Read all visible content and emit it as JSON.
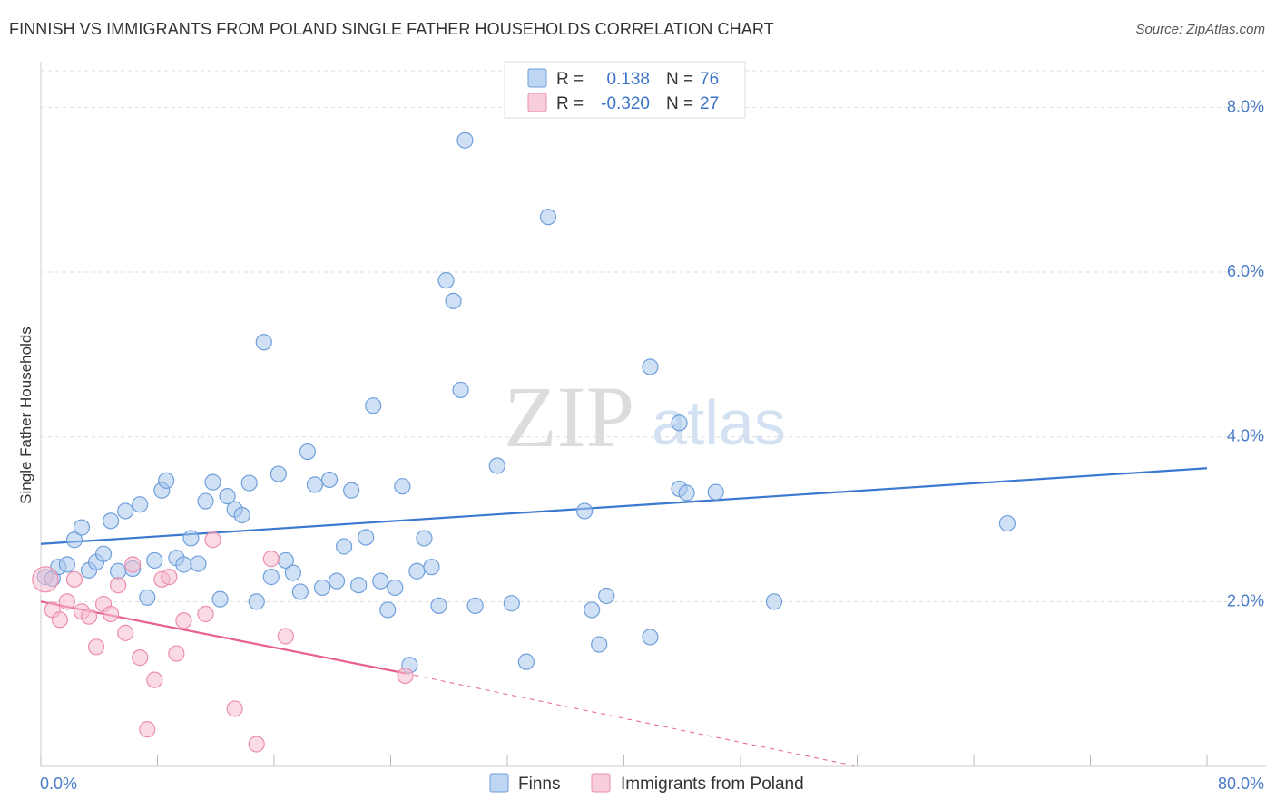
{
  "title": "FINNISH VS IMMIGRANTS FROM POLAND SINGLE FATHER HOUSEHOLDS CORRELATION CHART",
  "source": "Source: ZipAtlas.com",
  "watermark": {
    "zip": "ZIP",
    "atlas": "atlas"
  },
  "colors": {
    "finns_fill": "#a9c8ef",
    "finns_stroke": "#6f9fdb",
    "finns_line": "#3b78cf",
    "poland_fill": "#f6bccd",
    "poland_stroke": "#ec8eab",
    "poland_line": "#e8608f",
    "tick_text": "#4a7cc7",
    "grid": "#dddddd"
  },
  "legend": {
    "rows": [
      {
        "r_label": "R =",
        "r_value": "0.138",
        "n_label": "N =",
        "n_value": "76"
      },
      {
        "r_label": "R =",
        "r_value": "-0.320",
        "n_label": "N =",
        "n_value": "27"
      }
    ]
  },
  "chart_data": {
    "type": "scatter",
    "title": "FINNISH VS IMMIGRANTS FROM POLAND SINGLE FATHER HOUSEHOLDS CORRELATION CHART",
    "xlabel": "",
    "ylabel": "Single Father Households",
    "xlim": [
      0,
      80
    ],
    "ylim": [
      0,
      8.5
    ],
    "x_tick_labels": [
      "0.0%",
      "80.0%"
    ],
    "y_ticks": [
      2,
      4,
      6,
      8
    ],
    "y_tick_labels": [
      "2.0%",
      "4.0%",
      "6.0%",
      "8.0%"
    ],
    "grid": true,
    "series": [
      {
        "name": "Finns",
        "r": 0.138,
        "n": 76,
        "trend": {
          "x": [
            0,
            80
          ],
          "y": [
            2.7,
            3.62
          ]
        },
        "points": [
          [
            0.3,
            2.3
          ],
          [
            0.8,
            2.28
          ],
          [
            1.2,
            2.42
          ],
          [
            1.8,
            2.45
          ],
          [
            2.3,
            2.75
          ],
          [
            2.8,
            2.9
          ],
          [
            3.3,
            2.38
          ],
          [
            3.8,
            2.48
          ],
          [
            4.3,
            2.58
          ],
          [
            4.8,
            2.98
          ],
          [
            5.3,
            2.37
          ],
          [
            5.8,
            3.1
          ],
          [
            6.3,
            2.4
          ],
          [
            6.8,
            3.18
          ],
          [
            7.3,
            2.05
          ],
          [
            7.8,
            2.5
          ],
          [
            8.3,
            3.35
          ],
          [
            8.6,
            3.47
          ],
          [
            9.3,
            2.53
          ],
          [
            9.8,
            2.45
          ],
          [
            10.3,
            2.77
          ],
          [
            10.8,
            2.46
          ],
          [
            11.3,
            3.22
          ],
          [
            11.8,
            3.45
          ],
          [
            12.3,
            2.03
          ],
          [
            12.8,
            3.28
          ],
          [
            13.3,
            3.12
          ],
          [
            13.8,
            3.05
          ],
          [
            14.3,
            3.44
          ],
          [
            14.8,
            2.0
          ],
          [
            15.3,
            5.15
          ],
          [
            15.8,
            2.3
          ],
          [
            16.3,
            3.55
          ],
          [
            16.8,
            2.5
          ],
          [
            17.3,
            2.35
          ],
          [
            17.8,
            2.12
          ],
          [
            18.3,
            3.82
          ],
          [
            18.8,
            3.42
          ],
          [
            19.3,
            2.17
          ],
          [
            19.8,
            3.48
          ],
          [
            20.3,
            2.25
          ],
          [
            20.8,
            2.67
          ],
          [
            21.3,
            3.35
          ],
          [
            21.8,
            2.2
          ],
          [
            22.3,
            2.78
          ],
          [
            22.8,
            4.38
          ],
          [
            23.3,
            2.25
          ],
          [
            23.8,
            1.9
          ],
          [
            24.3,
            2.17
          ],
          [
            24.8,
            3.4
          ],
          [
            25.3,
            1.23
          ],
          [
            25.8,
            2.37
          ],
          [
            26.3,
            2.77
          ],
          [
            26.8,
            2.42
          ],
          [
            27.3,
            1.95
          ],
          [
            27.8,
            5.9
          ],
          [
            28.3,
            5.65
          ],
          [
            28.8,
            4.57
          ],
          [
            29.1,
            7.6
          ],
          [
            29.8,
            1.95
          ],
          [
            31.3,
            3.65
          ],
          [
            32.3,
            1.98
          ],
          [
            33.3,
            1.27
          ],
          [
            34.8,
            6.67
          ],
          [
            37.3,
            3.1
          ],
          [
            37.8,
            1.9
          ],
          [
            38.3,
            1.48
          ],
          [
            38.8,
            2.07
          ],
          [
            41.8,
            1.57
          ],
          [
            41.8,
            4.85
          ],
          [
            43.8,
            4.17
          ],
          [
            43.8,
            3.37
          ],
          [
            44.3,
            3.32
          ],
          [
            46.3,
            3.33
          ],
          [
            50.3,
            2.0
          ],
          [
            66.3,
            2.95
          ]
        ]
      },
      {
        "name": "Immigrants from Poland",
        "r": -0.32,
        "n": 27,
        "trend": {
          "x": [
            0,
            25
          ],
          "y": [
            2.0,
            1.13
          ]
        },
        "trend_dashed": {
          "x": [
            25,
            56
          ],
          "y": [
            1.13,
            0.0
          ]
        },
        "points": [
          [
            0.8,
            1.9
          ],
          [
            1.3,
            1.78
          ],
          [
            1.8,
            2.0
          ],
          [
            2.3,
            2.27
          ],
          [
            2.8,
            1.88
          ],
          [
            3.3,
            1.82
          ],
          [
            3.8,
            1.45
          ],
          [
            4.3,
            1.97
          ],
          [
            4.8,
            1.85
          ],
          [
            5.3,
            2.2
          ],
          [
            5.8,
            1.62
          ],
          [
            6.3,
            2.45
          ],
          [
            6.8,
            1.32
          ],
          [
            7.3,
            0.45
          ],
          [
            7.8,
            1.05
          ],
          [
            8.3,
            2.27
          ],
          [
            8.8,
            2.3
          ],
          [
            9.3,
            1.37
          ],
          [
            9.8,
            1.77
          ],
          [
            11.3,
            1.85
          ],
          [
            11.8,
            2.75
          ],
          [
            13.3,
            0.7
          ],
          [
            14.8,
            0.27
          ],
          [
            15.8,
            2.52
          ],
          [
            16.8,
            1.58
          ],
          [
            25.0,
            1.1
          ],
          [
            0.3,
            2.27
          ]
        ]
      }
    ]
  },
  "bottom_legend": {
    "items": [
      {
        "label": "Finns"
      },
      {
        "label": "Immigrants from Poland"
      }
    ]
  }
}
